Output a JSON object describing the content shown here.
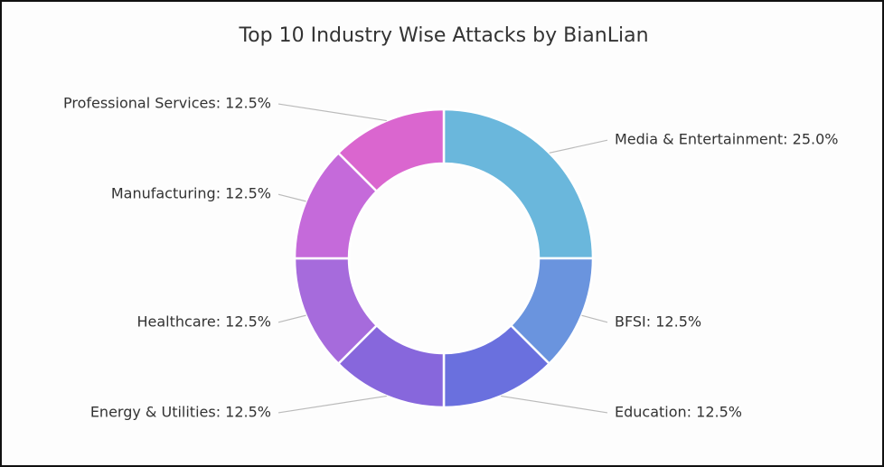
{
  "chart_data": {
    "type": "donut",
    "title": "Top 10 Industry Wise Attacks by BianLian",
    "values": [
      25,
      12.5,
      12.5,
      12.5,
      12.5,
      12.5,
      12.5
    ],
    "value_labels": [
      "Media & Entertainment: 25.0%",
      "BFSI: 12.5%",
      "Education: 12.5%",
      "Energy & Utilities: 12.5%",
      "Healthcare: 12.5%",
      "Manufacturing: 12.5%",
      "Professional Services: 12.5%"
    ],
    "colors": [
      "#6ab7dc",
      "#6a94de",
      "#6a70de",
      "#8767dc",
      "#a66bdc",
      "#c56ada",
      "#da66cf"
    ]
  }
}
